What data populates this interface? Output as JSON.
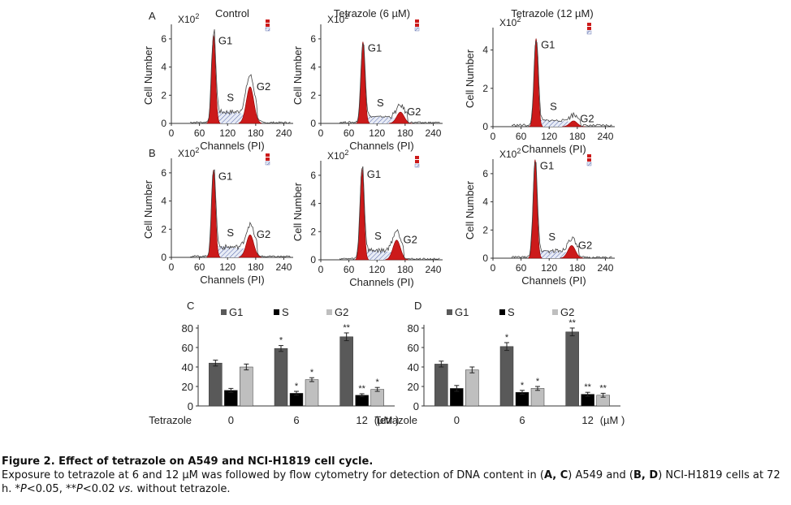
{
  "panel_labels": [
    "A",
    "B",
    "C",
    "D"
  ],
  "flow_panels": {
    "column_titles": [
      "Control",
      "Tetrazole (6 µM)",
      "Tetrazole (12 µM)"
    ],
    "multiplier": "X10",
    "multiplier_exp": "2",
    "xlabel": "Channels (PI)",
    "ylabel": "Cell Number",
    "peak_labels": [
      "G1",
      "S",
      "G2"
    ]
  },
  "bar_panels": {
    "tetrazole_label": "Tetrazole",
    "unit": "(µM )",
    "legend": [
      "G1",
      "S",
      "G2"
    ]
  },
  "chart_data": [
    {
      "type": "area",
      "panel": "A",
      "title": "Control",
      "xlabel": "Channels (PI)",
      "ylabel": "Cell Number",
      "x_ticks": [
        0,
        60,
        120,
        180,
        240
      ],
      "y_ticks": [
        0,
        2,
        4,
        6
      ],
      "g1_peak": [
        90,
        6.3
      ],
      "g2_peak": [
        168,
        2.6
      ],
      "series": [
        {
          "name": "G1"
        },
        {
          "name": "S"
        },
        {
          "name": "G2"
        }
      ]
    },
    {
      "type": "area",
      "panel": "A",
      "title": "Tetrazole (6 µM)",
      "xlabel": "Channels (PI)",
      "ylabel": "Cell Number",
      "x_ticks": [
        0,
        60,
        120,
        180,
        240
      ],
      "y_ticks": [
        0,
        2,
        4,
        6
      ],
      "g1_peak": [
        90,
        5.8
      ],
      "g2_peak": [
        170,
        0.8
      ],
      "series": [
        {
          "name": "G1"
        },
        {
          "name": "S"
        },
        {
          "name": "G2"
        }
      ]
    },
    {
      "type": "area",
      "panel": "A",
      "title": "Tetrazole (12 µM)",
      "xlabel": "Channels (PI)",
      "ylabel": "Cell Number",
      "x_ticks": [
        0,
        60,
        120,
        180,
        240
      ],
      "y_ticks": [
        0,
        2,
        4
      ],
      "g1_peak": [
        92,
        4.6
      ],
      "g2_peak": [
        172,
        0.3
      ],
      "series": [
        {
          "name": "G1"
        },
        {
          "name": "S"
        },
        {
          "name": "G2"
        }
      ]
    },
    {
      "type": "area",
      "panel": "B",
      "xlabel": "Channels (PI)",
      "ylabel": "Cell Number",
      "x_ticks": [
        0,
        60,
        120,
        180,
        240
      ],
      "y_ticks": [
        0,
        2,
        4,
        6
      ],
      "g1_peak": [
        90,
        6.2
      ],
      "g2_peak": [
        168,
        1.6
      ],
      "series": [
        {
          "name": "G1"
        },
        {
          "name": "S"
        },
        {
          "name": "G2"
        }
      ]
    },
    {
      "type": "area",
      "panel": "B",
      "xlabel": "Channels (PI)",
      "ylabel": "Cell Number",
      "x_ticks": [
        0,
        60,
        120,
        180,
        240
      ],
      "y_ticks": [
        0,
        2,
        4,
        6
      ],
      "g1_peak": [
        88,
        6.5
      ],
      "g2_peak": [
        162,
        1.4
      ],
      "series": [
        {
          "name": "G1"
        },
        {
          "name": "S"
        },
        {
          "name": "G2"
        }
      ]
    },
    {
      "type": "area",
      "panel": "B",
      "xlabel": "Channels (PI)",
      "ylabel": "Cell Number",
      "x_ticks": [
        0,
        60,
        120,
        180,
        240
      ],
      "y_ticks": [
        0,
        2,
        4,
        6
      ],
      "g1_peak": [
        90,
        7.0
      ],
      "g2_peak": [
        168,
        0.9
      ],
      "series": [
        {
          "name": "G1"
        },
        {
          "name": "S"
        },
        {
          "name": "G2"
        }
      ]
    },
    {
      "type": "bar",
      "panel": "C",
      "categories": [
        "0",
        "6",
        "12"
      ],
      "x_title": "Tetrazole",
      "x_unit": "(µM )",
      "ylim": [
        0,
        80
      ],
      "y_ticks": [
        0,
        20,
        40,
        60,
        80
      ],
      "series": [
        {
          "name": "G1",
          "color": "#595959",
          "values": [
            44,
            59,
            71
          ],
          "errors": [
            3,
            3,
            4
          ],
          "sig": [
            "",
            "*",
            "**"
          ]
        },
        {
          "name": "S",
          "color": "#000000",
          "values": [
            16,
            13,
            11
          ],
          "errors": [
            2,
            2,
            1.5
          ],
          "sig": [
            "",
            "*",
            "**"
          ]
        },
        {
          "name": "G2",
          "color": "#bfbfbf",
          "values": [
            40,
            27,
            17
          ],
          "errors": [
            3,
            2,
            2
          ],
          "sig": [
            "",
            "*",
            "*"
          ]
        }
      ]
    },
    {
      "type": "bar",
      "panel": "D",
      "categories": [
        "0",
        "6",
        "12"
      ],
      "x_title": "Tetrazole",
      "x_unit": "(µM )",
      "ylim": [
        0,
        80
      ],
      "y_ticks": [
        0,
        20,
        40,
        60,
        80
      ],
      "series": [
        {
          "name": "G1",
          "color": "#595959",
          "values": [
            43,
            61,
            76
          ],
          "errors": [
            3,
            4,
            4
          ],
          "sig": [
            "",
            "*",
            "**"
          ]
        },
        {
          "name": "S",
          "color": "#000000",
          "values": [
            18,
            14,
            12
          ],
          "errors": [
            3,
            2,
            2
          ],
          "sig": [
            "",
            "*",
            "**"
          ]
        },
        {
          "name": "G2",
          "color": "#bfbfbf",
          "values": [
            37,
            18,
            11
          ],
          "errors": [
            3,
            2,
            2
          ],
          "sig": [
            "",
            "*",
            "**"
          ]
        }
      ]
    }
  ],
  "caption": {
    "title": "Figure 2. Effect of tetrazole on A549 and NCI-H1819 cell cycle.",
    "p1": "Exposure to tetrazole at 6 and 12 µM was followed by flow cytometry for detection of DNA content in (",
    "A": "A",
    "C": "C",
    "p2": ") A549 and (",
    "B": "B",
    "D": "D",
    "p3": ") NCI-H1819 cells at 72 h. *",
    "P1": "P",
    "p4": "<0.05, **",
    "P2": "P",
    "p5": "<0.02 ",
    "vs": "vs.",
    "p6": " without tetrazole."
  }
}
